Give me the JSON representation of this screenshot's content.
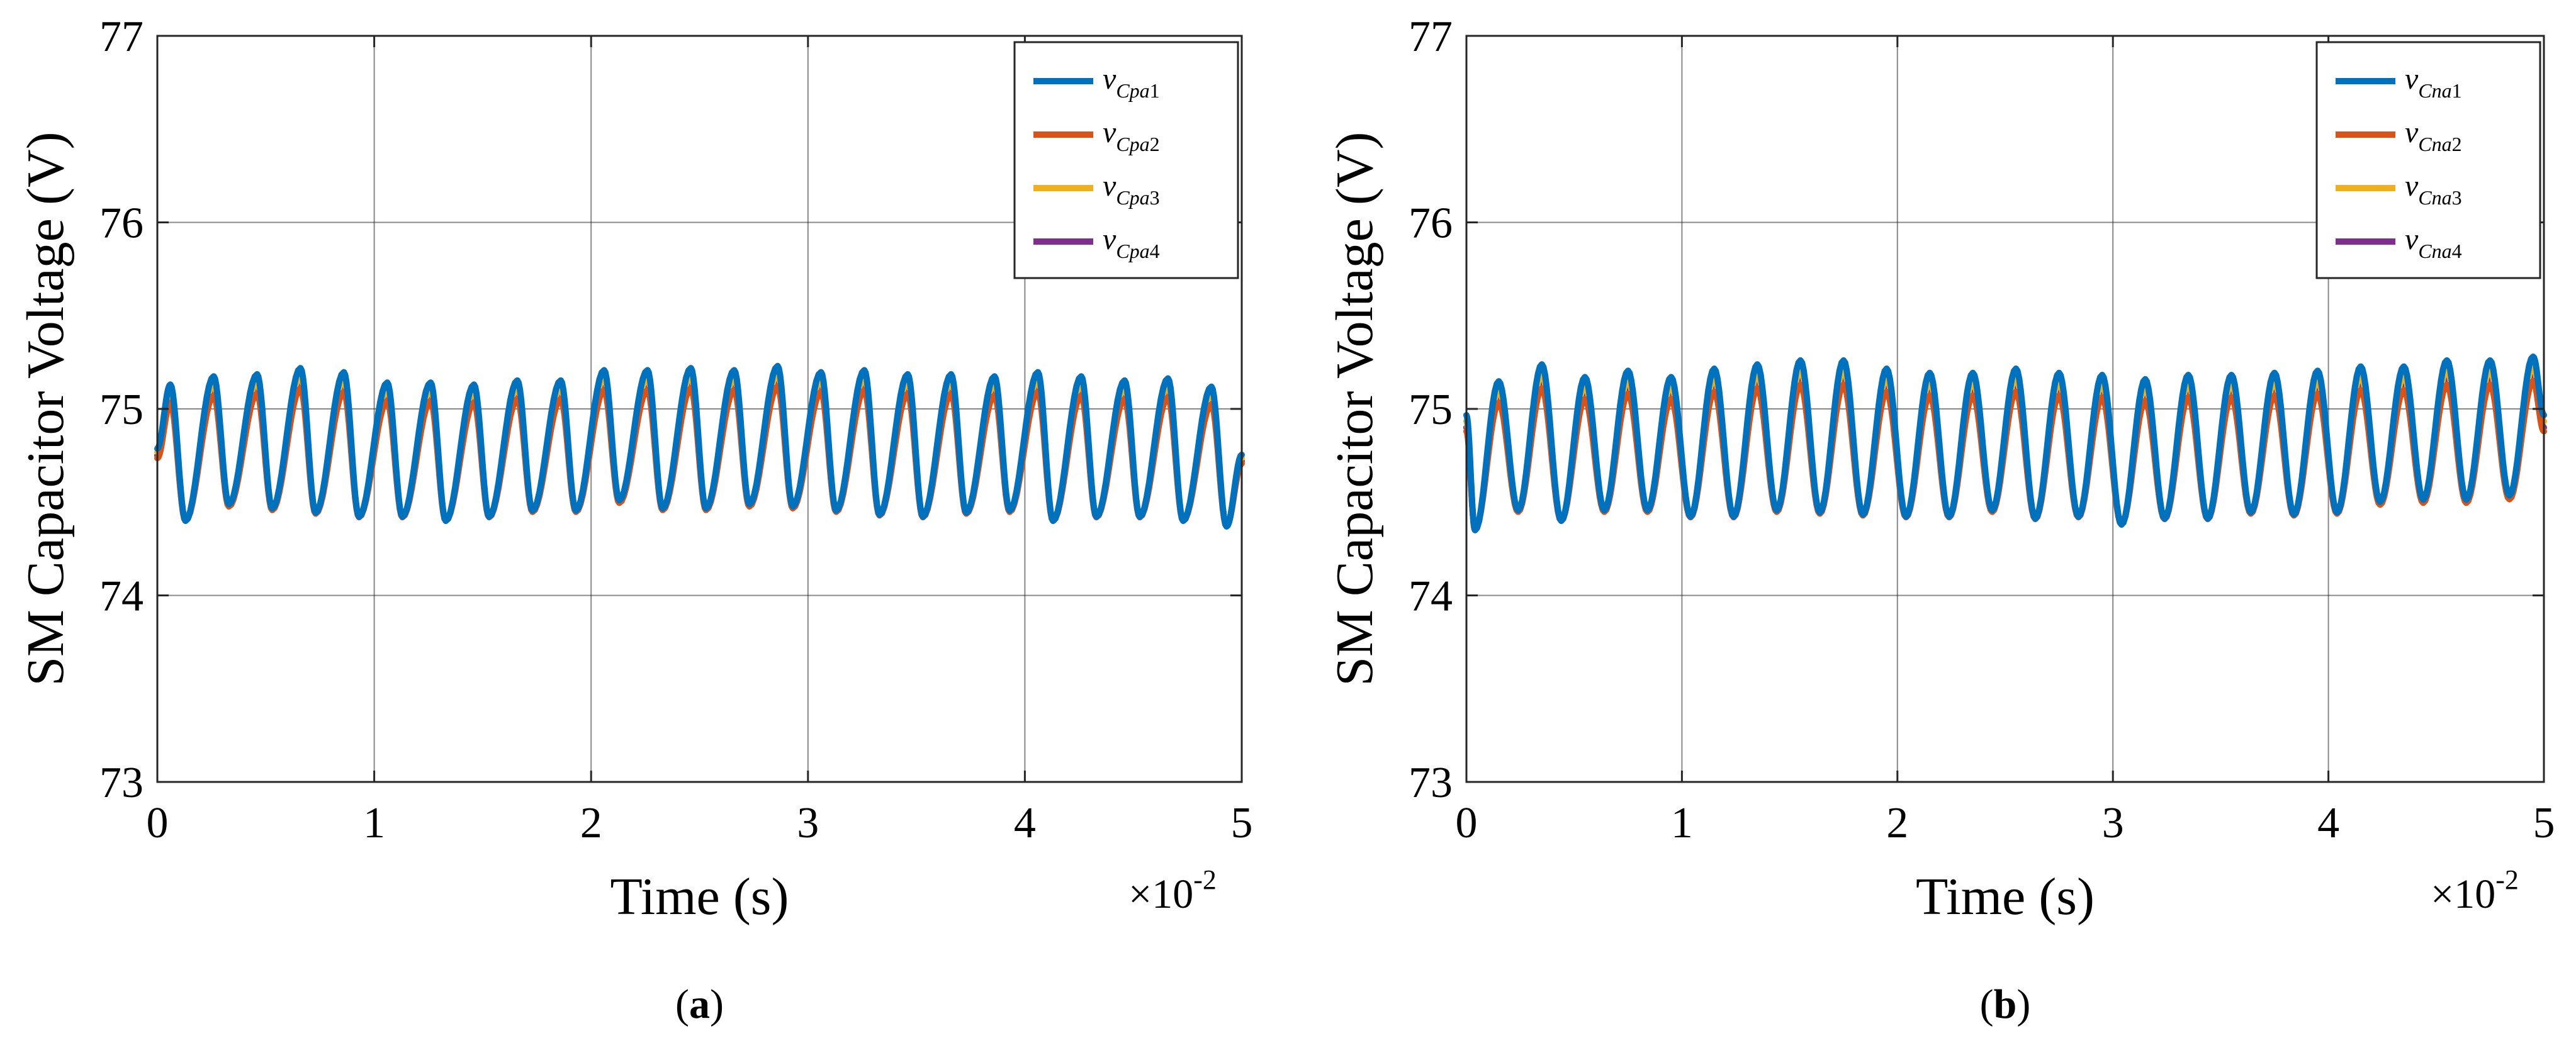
{
  "colors": {
    "series1": "#0072BD",
    "series2": "#D95319",
    "series3": "#EDB120",
    "series4": "#7E2F8E",
    "grid": "#262626",
    "axis": "#262626"
  },
  "chart_data": [
    {
      "type": "line",
      "panel": "(a)",
      "caption_letter": "a",
      "xlabel": "Time (s)",
      "x_exponent_base": "×10",
      "x_exponent_power": "-2",
      "ylabel": "SM Capacitor Voltage (V)",
      "xlim": [
        0,
        5
      ],
      "ylim": [
        73,
        77
      ],
      "xticks": [
        0,
        1,
        2,
        3,
        4,
        5
      ],
      "yticks": [
        73,
        74,
        75,
        76,
        77
      ],
      "grid": true,
      "legend_position": "top-right",
      "waveform": {
        "period": 0.2,
        "start_value": 74.75,
        "start_time": 0.0,
        "peak_times": [
          0.06,
          0.26,
          0.46,
          0.66,
          0.86,
          1.06,
          1.26,
          1.46,
          1.66,
          1.86,
          2.06,
          2.26,
          2.46,
          2.66,
          2.86,
          3.06,
          3.26,
          3.46,
          3.66,
          3.86,
          4.06,
          4.26,
          4.46,
          4.66,
          4.86
        ],
        "peak_values": [
          75.06,
          75.1,
          75.11,
          75.14,
          75.12,
          75.07,
          75.07,
          75.06,
          75.08,
          75.08,
          75.13,
          75.13,
          75.14,
          75.13,
          75.15,
          75.12,
          75.13,
          75.11,
          75.11,
          75.1,
          75.12,
          75.1,
          75.08,
          75.09,
          75.05
        ],
        "valley_times": [
          0.13,
          0.33,
          0.53,
          0.73,
          0.93,
          1.13,
          1.33,
          1.53,
          1.73,
          1.93,
          2.13,
          2.33,
          2.53,
          2.73,
          2.93,
          3.13,
          3.33,
          3.53,
          3.73,
          3.93,
          4.13,
          4.33,
          4.53,
          4.73,
          4.93
        ],
        "valley_values": [
          74.4,
          74.48,
          74.46,
          74.44,
          74.42,
          74.42,
          74.4,
          74.42,
          74.45,
          74.45,
          74.5,
          74.46,
          74.46,
          74.48,
          74.47,
          74.45,
          74.43,
          74.42,
          74.44,
          74.45,
          74.4,
          74.42,
          74.42,
          74.4,
          74.37
        ],
        "end_value": 74.72
      },
      "series": [
        {
          "name": "v",
          "sub": "Cpa",
          "idx": "1",
          "color_key": "series1",
          "offset": 0.08
        },
        {
          "name": "v",
          "sub": "Cpa",
          "idx": "2",
          "color_key": "series2",
          "offset": -0.03
        },
        {
          "name": "v",
          "sub": "Cpa",
          "idx": "3",
          "color_key": "series3",
          "offset": 0.04
        },
        {
          "name": "v",
          "sub": "Cpa",
          "idx": "4",
          "color_key": "series4",
          "offset": 0.0
        }
      ]
    },
    {
      "type": "line",
      "panel": "(b)",
      "caption_letter": "b",
      "xlabel": "Time (s)",
      "x_exponent_base": "×10",
      "x_exponent_power": "-2",
      "ylabel": "SM Capacitor Voltage (V)",
      "xlim": [
        0,
        5
      ],
      "ylim": [
        73,
        77
      ],
      "xticks": [
        0,
        1,
        2,
        3,
        4,
        5
      ],
      "yticks": [
        73,
        74,
        75,
        76,
        77
      ],
      "grid": true,
      "legend_position": "top-right",
      "waveform": {
        "period": 0.2,
        "start_value": 74.9,
        "start_time": 0.0,
        "peak_times": [
          0.15,
          0.35,
          0.55,
          0.75,
          0.95,
          1.15,
          1.35,
          1.55,
          1.75,
          1.95,
          2.15,
          2.35,
          2.55,
          2.75,
          2.95,
          3.15,
          3.35,
          3.55,
          3.75,
          3.95,
          4.15,
          4.35,
          4.55,
          4.75,
          4.95
        ],
        "peak_values": [
          75.06,
          75.14,
          75.08,
          75.11,
          75.08,
          75.12,
          75.14,
          75.16,
          75.16,
          75.12,
          75.1,
          75.1,
          75.12,
          75.1,
          75.09,
          75.07,
          75.09,
          75.09,
          75.1,
          75.11,
          75.13,
          75.13,
          75.16,
          75.16,
          75.18
        ],
        "valley_times": [
          0.04,
          0.24,
          0.44,
          0.64,
          0.84,
          1.04,
          1.24,
          1.44,
          1.64,
          1.84,
          2.04,
          2.24,
          2.44,
          2.64,
          2.84,
          3.04,
          3.24,
          3.44,
          3.64,
          3.84,
          4.04,
          4.24,
          4.44,
          4.64,
          4.84
        ],
        "valley_values": [
          74.35,
          74.45,
          74.4,
          74.45,
          74.45,
          74.42,
          74.42,
          74.45,
          74.44,
          74.43,
          74.42,
          74.42,
          74.45,
          74.41,
          74.42,
          74.38,
          74.41,
          74.41,
          74.44,
          74.43,
          74.44,
          74.49,
          74.5,
          74.5,
          74.52
        ],
        "end_value": 74.9
      },
      "series": [
        {
          "name": "v",
          "sub": "Cna",
          "idx": "1",
          "color_key": "series1",
          "offset": 0.1
        },
        {
          "name": "v",
          "sub": "Cna",
          "idx": "2",
          "color_key": "series2",
          "offset": -0.03
        },
        {
          "name": "v",
          "sub": "Cna",
          "idx": "3",
          "color_key": "series3",
          "offset": 0.05
        },
        {
          "name": "v",
          "sub": "Cna",
          "idx": "4",
          "color_key": "series4",
          "offset": 0.0
        }
      ]
    }
  ]
}
